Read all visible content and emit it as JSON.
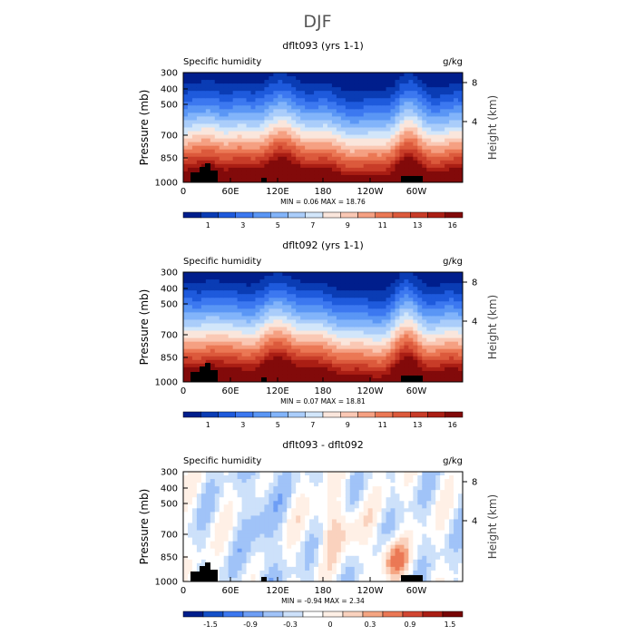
{
  "figure_title": "DJF",
  "chart_data": [
    {
      "type": "heatmap",
      "title": "dflt093 (yrs 1-1)",
      "field_label": "Specific humidity",
      "units": "g/kg",
      "ylabel": "Pressure (mb)",
      "ylabel_right": "Height (km)",
      "x_ticks": [
        "0",
        "60E",
        "120E",
        "180",
        "120W",
        "60W"
      ],
      "y_ticks": [
        "300",
        "400",
        "500",
        "700",
        "850",
        "1000"
      ],
      "y_right_ticks": [
        "8",
        "4"
      ],
      "stats": "MIN =     0.06   MAX =   18.76",
      "min": 0.06,
      "max": 18.76,
      "colorbar_labels": [
        "1",
        "3",
        "5",
        "7",
        "9",
        "11",
        "13",
        "16"
      ],
      "palette": "bluered",
      "field": "moist"
    },
    {
      "type": "heatmap",
      "title": "dflt092 (yrs 1-1)",
      "field_label": "Specific humidity",
      "units": "g/kg",
      "ylabel": "Pressure (mb)",
      "ylabel_right": "Height (km)",
      "x_ticks": [
        "0",
        "60E",
        "120E",
        "180",
        "120W",
        "60W"
      ],
      "y_ticks": [
        "300",
        "400",
        "500",
        "700",
        "850",
        "1000"
      ],
      "y_right_ticks": [
        "8",
        "4"
      ],
      "stats": "MIN =     0.07   MAX =   18.81",
      "min": 0.07,
      "max": 18.81,
      "colorbar_labels": [
        "1",
        "3",
        "5",
        "7",
        "9",
        "11",
        "13",
        "16"
      ],
      "palette": "bluered",
      "field": "moist"
    },
    {
      "type": "heatmap",
      "title": "dflt093 - dflt092",
      "field_label": "Specific humidity",
      "units": "g/kg",
      "ylabel": "Pressure (mb)",
      "ylabel_right": "Height (km)",
      "x_ticks": [
        "0",
        "60E",
        "120E",
        "180",
        "120W",
        "60W"
      ],
      "y_ticks": [
        "300",
        "400",
        "500",
        "700",
        "850",
        "1000"
      ],
      "y_right_ticks": [
        "8",
        "4"
      ],
      "stats": "MIN =    -0.94   MAX =    2.34",
      "min": -0.94,
      "max": 2.34,
      "colorbar_labels": [
        "-1.5",
        "-0.9",
        "-0.3",
        "0",
        "0.3",
        "0.9",
        "1.5"
      ],
      "palette": "bluered",
      "field": "diff"
    }
  ],
  "colors": {
    "moist_scale": [
      "#001e8c",
      "#0a3cb4",
      "#1e5adc",
      "#3c78f0",
      "#5a96f5",
      "#82b4fa",
      "#aacdfa",
      "#d2e6fa",
      "#fae6dc",
      "#fac8b4",
      "#f5a082",
      "#eb7855",
      "#dc5a3c",
      "#c83c28",
      "#aa1e14",
      "#820a0a"
    ],
    "diff_scale": [
      "#001e8c",
      "#1450c8",
      "#3c78f0",
      "#6e9ef5",
      "#a0c3f8",
      "#cde1fa",
      "#ffffff",
      "#fff0e6",
      "#fad2be",
      "#f5a582",
      "#eb7855",
      "#d24632",
      "#aa1e14",
      "#780505"
    ],
    "terrain": "#000000"
  }
}
